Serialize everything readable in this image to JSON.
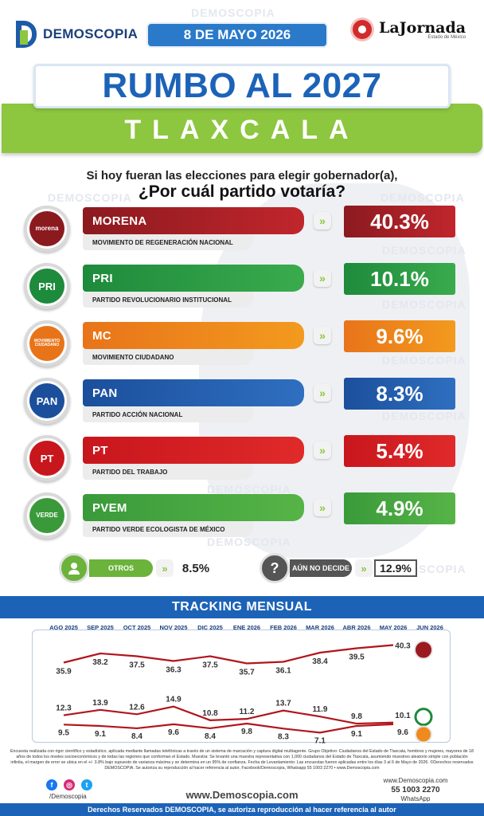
{
  "header": {
    "brand": "DEMOSCOPIA",
    "date": "8 DE MAYO 2026",
    "partner": "LaJornada",
    "partner_sub": "Estado de México"
  },
  "title": "RUMBO AL 2027",
  "state": "TLAXCALA",
  "question": {
    "line1": "Si hoy fueran las elecciones para elegir gobernador(a),",
    "line2": "¿Por cuál partido votaría?"
  },
  "watermark": "DEMOSCOPIA",
  "parties": [
    {
      "abbr": "MORENA",
      "full": "MOVIMIENTO DE REGENERACIÓN NACIONAL",
      "value": "40.3%",
      "logo_text": "morena",
      "color": "#8b1a1f",
      "color2": "#c0262c",
      "icon": "morena-logo-icon"
    },
    {
      "abbr": "PRI",
      "full": "PARTIDO REVOLUCIONARIO INSTITUCIONAL",
      "value": "10.1%",
      "logo_text": "PRI",
      "color": "#1e8a3c",
      "color2": "#3aab4d",
      "icon": "pri-logo-icon"
    },
    {
      "abbr": "MC",
      "full": "MOVIMIENTO CIUDADANO",
      "value": "9.6%",
      "logo_text": "MOVIMIENTO CIUDADANO",
      "color": "#e8741a",
      "color2": "#f39a1e",
      "icon": "mc-logo-icon"
    },
    {
      "abbr": "PAN",
      "full": "PARTIDO ACCIÓN NACIONAL",
      "value": "8.3%",
      "logo_text": "PAN",
      "color": "#1b4f9c",
      "color2": "#2f6fc0",
      "icon": "pan-logo-icon"
    },
    {
      "abbr": "PT",
      "full": "PARTIDO DEL TRABAJO",
      "value": "5.4%",
      "logo_text": "PT",
      "color": "#c8161d",
      "color2": "#e02a2a",
      "icon": "pt-logo-icon"
    },
    {
      "abbr": "PVEM",
      "full": "PARTIDO VERDE ECOLOGISTA DE MÉXICO",
      "value": "4.9%",
      "logo_text": "VERDE",
      "color": "#3a9a3a",
      "color2": "#56b447",
      "icon": "pvem-logo-icon"
    }
  ],
  "others": {
    "label": "OTROS",
    "value": "8.5%",
    "undecided_label": "AÚN NO DECIDE",
    "undecided_value": "12.9%"
  },
  "tracking": {
    "title": "TRACKING MENSUAL"
  },
  "chart_data": {
    "type": "line",
    "title": "TRACKING MENSUAL",
    "categories": [
      "AGO 2025",
      "SEP 2025",
      "OCT 2025",
      "NOV 2025",
      "DIC 2025",
      "ENE 2026",
      "FEB 2026",
      "MAR 2026",
      "ABR 2026",
      "MAY 2026",
      "JUN 2026"
    ],
    "series": [
      {
        "name": "MORENA",
        "color": "#b0161c",
        "values": [
          35.9,
          38.2,
          37.5,
          36.3,
          37.5,
          35.7,
          36.1,
          38.4,
          39.5,
          40.3,
          null
        ]
      },
      {
        "name": "PRI",
        "color": "#b0161c",
        "values": [
          12.3,
          13.9,
          12.6,
          14.9,
          10.8,
          11.2,
          13.7,
          11.9,
          9.8,
          10.1,
          null
        ]
      },
      {
        "name": "MC",
        "color": "#b0161c",
        "values": [
          9.5,
          9.1,
          8.4,
          9.6,
          8.4,
          9.8,
          8.3,
          7.1,
          9.1,
          9.6,
          null
        ]
      }
    ],
    "grid": false
  },
  "footnote": "Encuesta realizada con rigor científico y estadístico, aplicada mediante llamadas telefónicas a través de un sistema de marcación y captura digital multiagente. Grupo Objetivo: Ciudadanos del Estado de Tlaxcala, hombres y mujeres, mayores de 18 años de todos los niveles socioeconómicos y de todas las regiones que conforman el Estado. Muestra: Se levantó una muestra representativa con 1,000 ciudadanos del Estado de Tlaxcala, asumiendo muestreo aleatorio simple con población infinita, el margen de error se ubica en el +/- 3.8% bajo supuesto de varianza máxima y se determina en un 95% de confianza. Fecha de Levantamiento: Las encuestas fueron aplicadas entre los días 3 al 6 de Mayo de 2026. ©Derechos reservados DEMOSCOPIA. Se autoriza su reproducción al hacer referencia al autor, Facebook/Demoscopia, Whatsapp 55 1003 2270 • www.Demoscopia.com",
  "footer": {
    "handle": "/Demoscopia",
    "website": "www.Demoscopia.com",
    "contact_site": "www.Demoscopia.com",
    "phone": "55 1003 2270",
    "whatsapp": "WhatsApp",
    "rights": "Derechos Reservados DEMOSCOPIA, se autoriza reproducción al hacer referencia al autor"
  }
}
